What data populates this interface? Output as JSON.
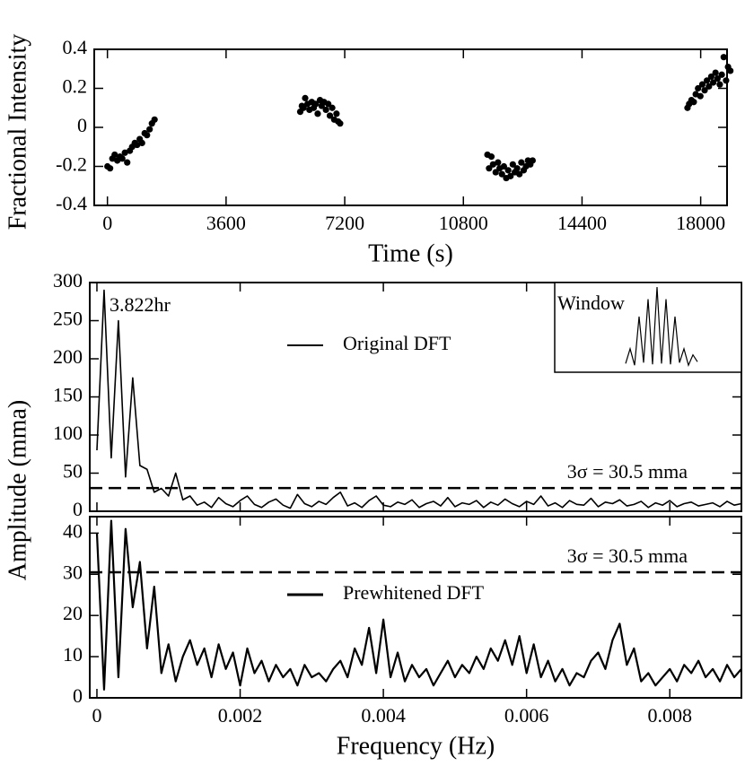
{
  "chart_data": [
    {
      "type": "scatter",
      "ylabel": "Fractional Intensity",
      "xlabel": "Time (s)",
      "color": "#000000",
      "xlim": [
        -400,
        18800
      ],
      "ylim": [
        -0.4,
        0.4
      ],
      "xticks": [
        0,
        3600,
        7200,
        10800,
        14400,
        18000
      ],
      "yticks": [
        -0.4,
        -0.2,
        0,
        0.2,
        0.4
      ],
      "x": [
        0,
        80,
        150,
        220,
        300,
        380,
        450,
        530,
        600,
        680,
        750,
        830,
        900,
        980,
        1050,
        1130,
        1200,
        1280,
        1350,
        1430,
        5850,
        5900,
        5950,
        6000,
        6070,
        6130,
        6200,
        6260,
        6320,
        6380,
        6450,
        6500,
        6570,
        6630,
        6700,
        6750,
        6820,
        6880,
        6950,
        7000,
        7060,
        11530,
        11580,
        11650,
        11700,
        11780,
        11850,
        11900,
        11970,
        12030,
        12100,
        12160,
        12230,
        12300,
        12360,
        12430,
        12500,
        12560,
        12630,
        12700,
        12760,
        12830,
        12900,
        17600,
        17650,
        17720,
        17790,
        17850,
        17920,
        17990,
        18050,
        18120,
        18190,
        18250,
        18320,
        18380,
        18450,
        18510,
        18580,
        18640,
        18700,
        18770,
        18830,
        18900
      ],
      "values": [
        -0.2,
        -0.21,
        -0.16,
        -0.14,
        -0.17,
        -0.15,
        -0.16,
        -0.13,
        -0.18,
        -0.12,
        -0.1,
        -0.08,
        -0.09,
        -0.06,
        -0.08,
        -0.03,
        -0.04,
        -0.01,
        0.02,
        0.04,
        0.08,
        0.11,
        0.1,
        0.15,
        0.12,
        0.09,
        0.13,
        0.1,
        0.12,
        0.07,
        0.14,
        0.11,
        0.13,
        0.09,
        0.12,
        0.06,
        0.1,
        0.04,
        0.07,
        0.03,
        0.02,
        -0.14,
        -0.21,
        -0.15,
        -0.19,
        -0.23,
        -0.18,
        -0.21,
        -0.24,
        -0.2,
        -0.26,
        -0.22,
        -0.25,
        -0.19,
        -0.23,
        -0.21,
        -0.24,
        -0.18,
        -0.22,
        -0.2,
        -0.17,
        -0.19,
        -0.17,
        0.1,
        0.12,
        0.14,
        0.13,
        0.17,
        0.2,
        0.16,
        0.22,
        0.19,
        0.24,
        0.21,
        0.26,
        0.23,
        0.28,
        0.25,
        0.22,
        0.27,
        0.36,
        0.24,
        0.31,
        0.29
      ]
    },
    {
      "type": "line",
      "ylabel": "Amplitude (mma)",
      "annotation": "3.822hr",
      "threshold": 30.5,
      "threshold_label": "3σ = 30.5 mma",
      "xlim": [
        -0.0001,
        0.009
      ],
      "ylim": [
        0,
        300
      ],
      "yticks": [
        0,
        50,
        100,
        150,
        200,
        250,
        300
      ],
      "inset": {
        "title": "Window",
        "values": [
          8,
          25,
          6,
          62,
          9,
          82,
          7,
          96,
          8,
          82,
          7,
          62,
          9,
          25,
          6,
          18,
          10
        ]
      },
      "x": [
        0,
        0.0001,
        0.0002,
        0.0003,
        0.0004,
        0.0005,
        0.0006,
        0.0007,
        0.0008,
        0.0009,
        0.001,
        0.0011,
        0.0012,
        0.0013,
        0.0014,
        0.0015,
        0.0016,
        0.0017,
        0.0018,
        0.0019,
        0.002,
        0.0021,
        0.0022,
        0.0023,
        0.0024,
        0.0025,
        0.0026,
        0.0027,
        0.0028,
        0.0029,
        0.003,
        0.0031,
        0.0032,
        0.0033,
        0.0034,
        0.0035,
        0.0036,
        0.0037,
        0.0038,
        0.0039,
        0.004,
        0.0041,
        0.0042,
        0.0043,
        0.0044,
        0.0045,
        0.0046,
        0.0047,
        0.0048,
        0.0049,
        0.005,
        0.0051,
        0.0052,
        0.0053,
        0.0054,
        0.0055,
        0.0056,
        0.0057,
        0.0058,
        0.0059,
        0.006,
        0.0061,
        0.0062,
        0.0063,
        0.0064,
        0.0065,
        0.0066,
        0.0067,
        0.0068,
        0.0069,
        0.007,
        0.0071,
        0.0072,
        0.0073,
        0.0074,
        0.0075,
        0.0076,
        0.0077,
        0.0078,
        0.0079,
        0.008,
        0.0081,
        0.0082,
        0.0083,
        0.0084,
        0.0085,
        0.0086,
        0.0087,
        0.0088,
        0.0089,
        0.009
      ],
      "series": [
        {
          "name": "Original DFT",
          "color": "#000000",
          "values": [
            80,
            290,
            70,
            250,
            45,
            175,
            60,
            55,
            25,
            30,
            20,
            50,
            15,
            20,
            8,
            12,
            5,
            18,
            10,
            6,
            14,
            20,
            9,
            5,
            12,
            16,
            8,
            4,
            22,
            10,
            6,
            13,
            9,
            18,
            25,
            7,
            11,
            5,
            14,
            20,
            8,
            6,
            12,
            9,
            15,
            5,
            10,
            13,
            7,
            18,
            6,
            11,
            9,
            14,
            5,
            12,
            8,
            16,
            10,
            6,
            13,
            9,
            20,
            7,
            11,
            5,
            14,
            9,
            8,
            17,
            6,
            12,
            10,
            15,
            7,
            9,
            13,
            5,
            11,
            8,
            14,
            6,
            10,
            12,
            7,
            9,
            11,
            6,
            13,
            8,
            10
          ]
        }
      ]
    },
    {
      "type": "line",
      "xlabel": "Frequency (Hz)",
      "threshold": 30.5,
      "threshold_label": "3σ = 30.5 mma",
      "xlim": [
        -0.0001,
        0.009
      ],
      "ylim": [
        0,
        44
      ],
      "yticks": [
        0,
        10,
        20,
        30,
        40
      ],
      "xticks": [
        0,
        0.002,
        0.004,
        0.006,
        0.008
      ],
      "x": [
        0,
        0.0001,
        0.0002,
        0.0003,
        0.0004,
        0.0005,
        0.0006,
        0.0007,
        0.0008,
        0.0009,
        0.001,
        0.0011,
        0.0012,
        0.0013,
        0.0014,
        0.0015,
        0.0016,
        0.0017,
        0.0018,
        0.0019,
        0.002,
        0.0021,
        0.0022,
        0.0023,
        0.0024,
        0.0025,
        0.0026,
        0.0027,
        0.0028,
        0.0029,
        0.003,
        0.0031,
        0.0032,
        0.0033,
        0.0034,
        0.0035,
        0.0036,
        0.0037,
        0.0038,
        0.0039,
        0.004,
        0.0041,
        0.0042,
        0.0043,
        0.0044,
        0.0045,
        0.0046,
        0.0047,
        0.0048,
        0.0049,
        0.005,
        0.0051,
        0.0052,
        0.0053,
        0.0054,
        0.0055,
        0.0056,
        0.0057,
        0.0058,
        0.0059,
        0.006,
        0.0061,
        0.0062,
        0.0063,
        0.0064,
        0.0065,
        0.0066,
        0.0067,
        0.0068,
        0.0069,
        0.007,
        0.0071,
        0.0072,
        0.0073,
        0.0074,
        0.0075,
        0.0076,
        0.0077,
        0.0078,
        0.0079,
        0.008,
        0.0081,
        0.0082,
        0.0083,
        0.0084,
        0.0085,
        0.0086,
        0.0087,
        0.0088,
        0.0089,
        0.009
      ],
      "series": [
        {
          "name": "Prewhitened DFT",
          "color": "#000000",
          "values": [
            40,
            2,
            43,
            5,
            41,
            22,
            33,
            12,
            27,
            6,
            13,
            4,
            10,
            14,
            8,
            12,
            5,
            13,
            7,
            11,
            3,
            12,
            6,
            9,
            4,
            8,
            5,
            7,
            3,
            8,
            5,
            6,
            4,
            7,
            9,
            5,
            12,
            8,
            17,
            6,
            19,
            5,
            11,
            4,
            8,
            5,
            7,
            3,
            6,
            9,
            5,
            8,
            6,
            10,
            7,
            12,
            9,
            14,
            8,
            15,
            6,
            13,
            5,
            9,
            4,
            7,
            3,
            6,
            5,
            9,
            11,
            7,
            14,
            18,
            8,
            12,
            4,
            6,
            3,
            5,
            7,
            4,
            8,
            6,
            9,
            5,
            7,
            4,
            8,
            5,
            7
          ]
        }
      ]
    }
  ]
}
